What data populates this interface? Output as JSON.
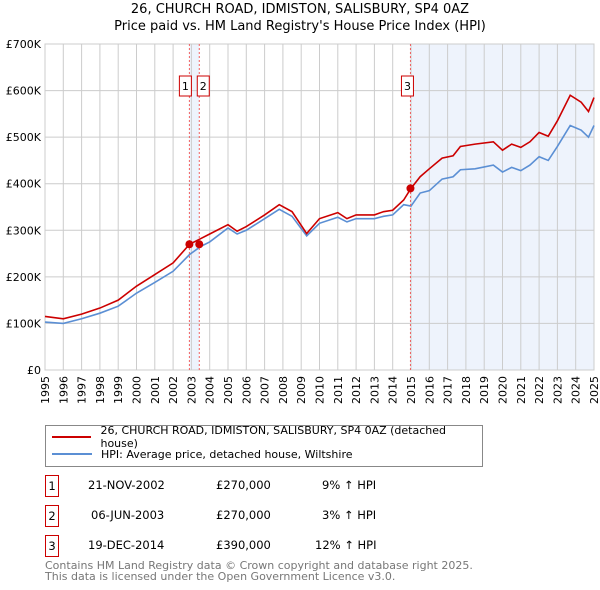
{
  "chart_data": {
    "type": "line",
    "title": "26, CHURCH ROAD, IDMISTON, SALISBURY, SP4 0AZ",
    "subtitle": "Price paid vs. HM Land Registry's House Price Index (HPI)",
    "xlim": [
      1995,
      2025
    ],
    "ylim": [
      0,
      700000
    ],
    "y_ticks": [
      0,
      100000,
      200000,
      300000,
      400000,
      500000,
      600000,
      700000
    ],
    "y_tick_labels": [
      "£0",
      "£100K",
      "£200K",
      "£300K",
      "£400K",
      "£500K",
      "£600K",
      "£700K"
    ],
    "x_ticks": [
      "1995",
      "1996",
      "1997",
      "1998",
      "1999",
      "2000",
      "2001",
      "2002",
      "2003",
      "2004",
      "2005",
      "2006",
      "2007",
      "2008",
      "2009",
      "2010",
      "2011",
      "2012",
      "2013",
      "2014",
      "2015",
      "2016",
      "2017",
      "2018",
      "2019",
      "2020",
      "2021",
      "2022",
      "2023",
      "2024",
      "2025"
    ],
    "grid": true,
    "x": [
      1995,
      1996,
      1997,
      1998,
      1999,
      2000,
      2001,
      2002,
      2002.9,
      2003.5,
      2004,
      2005,
      2005.5,
      2006,
      2007,
      2007.8,
      2008.5,
      2009.3,
      2010,
      2011,
      2011.5,
      2012,
      2013,
      2013.5,
      2014,
      2014.6,
      2015,
      2015.5,
      2016,
      2016.7,
      2017.3,
      2017.7,
      2018.5,
      2019.5,
      2020,
      2020.5,
      2021,
      2021.5,
      2022,
      2022.5,
      2023,
      2023.7,
      2024.3,
      2024.7,
      2025
    ],
    "series": [
      {
        "name": "26, CHURCH ROAD, IDMISTON, SALISBURY, SP4 0AZ (detached house)",
        "color": "#cc0000",
        "values": [
          115000,
          110000,
          120000,
          133000,
          150000,
          180000,
          205000,
          230000,
          270000,
          282000,
          292000,
          312000,
          298000,
          308000,
          333000,
          355000,
          340000,
          293000,
          325000,
          338000,
          325000,
          333000,
          333000,
          340000,
          343000,
          365000,
          390000,
          415000,
          432000,
          455000,
          460000,
          480000,
          485000,
          490000,
          472000,
          485000,
          478000,
          490000,
          510000,
          502000,
          535000,
          590000,
          575000,
          555000,
          585000
        ]
      },
      {
        "name": "HPI: Average price, detached house, Wiltshire",
        "color": "#5b8fd4",
        "values": [
          103000,
          100000,
          110000,
          122000,
          137000,
          165000,
          188000,
          212000,
          248000,
          265000,
          275000,
          305000,
          292000,
          300000,
          325000,
          345000,
          330000,
          288000,
          315000,
          328000,
          318000,
          325000,
          325000,
          330000,
          333000,
          355000,
          352000,
          380000,
          385000,
          410000,
          415000,
          430000,
          432000,
          440000,
          425000,
          435000,
          428000,
          440000,
          458000,
          450000,
          480000,
          525000,
          515000,
          500000,
          525000
        ]
      }
    ],
    "sales": [
      {
        "label": "1",
        "x": 2002.89,
        "value": 270000,
        "date": "21-NOV-2002",
        "price": "£270,000",
        "hpi": "9% ↑ HPI"
      },
      {
        "label": "2",
        "x": 2003.43,
        "value": 270000,
        "date": "06-JUN-2003",
        "price": "£270,000",
        "hpi": "3% ↑ HPI"
      },
      {
        "label": "3",
        "x": 2014.97,
        "value": 390000,
        "date": "19-DEC-2014",
        "price": "£390,000",
        "hpi": "12% ↑ HPI"
      }
    ],
    "legend": "below"
  },
  "footer": [
    "Contains HM Land Registry data © Crown copyright and database right 2025.",
    "This data is licensed under the Open Government Licence v3.0."
  ]
}
